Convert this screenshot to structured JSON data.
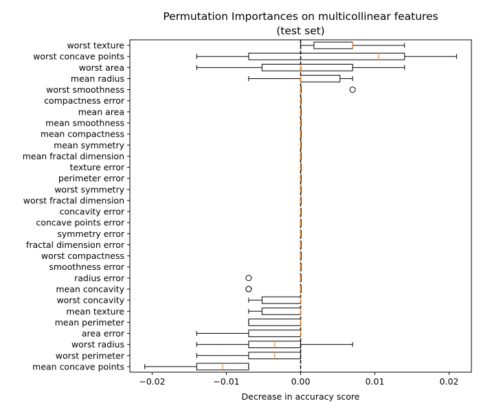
{
  "chart_data": {
    "type": "boxplot",
    "orientation": "horizontal",
    "title": "Permutation Importances on multicollinear features",
    "subtitle": "(test set)",
    "xlabel": "Decrease in accuracy score",
    "ylabel": "",
    "xlim": [
      -0.023,
      0.023
    ],
    "xticks": [
      -0.02,
      -0.01,
      0.0,
      0.01,
      0.02
    ],
    "xtick_labels": [
      "−0.02",
      "−0.01",
      "0.00",
      "0.01",
      "0.02"
    ],
    "reference_line": {
      "x": 0.0,
      "style": "dashed",
      "color": "#000000"
    },
    "colors": {
      "box": "#000000",
      "median": "#ff7f0e",
      "flier": "#000000"
    },
    "features": [
      {
        "name": "worst texture",
        "whislo": 0.0,
        "q1": 0.0018,
        "med": 0.007,
        "q3": 0.007,
        "whishi": 0.014,
        "fliers": []
      },
      {
        "name": "worst concave points",
        "whislo": -0.014,
        "q1": -0.007,
        "med": 0.0105,
        "q3": 0.014,
        "whishi": 0.021,
        "fliers": []
      },
      {
        "name": "worst area",
        "whislo": -0.014,
        "q1": -0.0052,
        "med": 0.0,
        "q3": 0.007,
        "whishi": 0.014,
        "fliers": []
      },
      {
        "name": "mean radius",
        "whislo": -0.007,
        "q1": 0.0,
        "med": 0.0,
        "q3": 0.0053,
        "whishi": 0.007,
        "fliers": []
      },
      {
        "name": "worst smoothness",
        "whislo": 0.0,
        "q1": 0.0,
        "med": 0.0,
        "q3": 0.0,
        "whishi": 0.0,
        "fliers": [
          0.007
        ]
      },
      {
        "name": "compactness error",
        "whislo": 0.0,
        "q1": 0.0,
        "med": 0.0,
        "q3": 0.0,
        "whishi": 0.0,
        "fliers": []
      },
      {
        "name": "mean area",
        "whislo": 0.0,
        "q1": 0.0,
        "med": 0.0,
        "q3": 0.0,
        "whishi": 0.0,
        "fliers": []
      },
      {
        "name": "mean smoothness",
        "whislo": 0.0,
        "q1": 0.0,
        "med": 0.0,
        "q3": 0.0,
        "whishi": 0.0,
        "fliers": []
      },
      {
        "name": "mean compactness",
        "whislo": 0.0,
        "q1": 0.0,
        "med": 0.0,
        "q3": 0.0,
        "whishi": 0.0,
        "fliers": []
      },
      {
        "name": "mean symmetry",
        "whislo": 0.0,
        "q1": 0.0,
        "med": 0.0,
        "q3": 0.0,
        "whishi": 0.0,
        "fliers": []
      },
      {
        "name": "mean fractal dimension",
        "whislo": 0.0,
        "q1": 0.0,
        "med": 0.0,
        "q3": 0.0,
        "whishi": 0.0,
        "fliers": []
      },
      {
        "name": "texture error",
        "whislo": 0.0,
        "q1": 0.0,
        "med": 0.0,
        "q3": 0.0,
        "whishi": 0.0,
        "fliers": []
      },
      {
        "name": "perimeter error",
        "whislo": 0.0,
        "q1": 0.0,
        "med": 0.0,
        "q3": 0.0,
        "whishi": 0.0,
        "fliers": []
      },
      {
        "name": "worst symmetry",
        "whislo": 0.0,
        "q1": 0.0,
        "med": 0.0,
        "q3": 0.0,
        "whishi": 0.0,
        "fliers": []
      },
      {
        "name": "worst fractal dimension",
        "whislo": 0.0,
        "q1": 0.0,
        "med": 0.0,
        "q3": 0.0,
        "whishi": 0.0,
        "fliers": []
      },
      {
        "name": "concavity error",
        "whislo": 0.0,
        "q1": 0.0,
        "med": 0.0,
        "q3": 0.0,
        "whishi": 0.0,
        "fliers": []
      },
      {
        "name": "concave points error",
        "whislo": 0.0,
        "q1": 0.0,
        "med": 0.0,
        "q3": 0.0,
        "whishi": 0.0,
        "fliers": []
      },
      {
        "name": "symmetry error",
        "whislo": 0.0,
        "q1": 0.0,
        "med": 0.0,
        "q3": 0.0,
        "whishi": 0.0,
        "fliers": []
      },
      {
        "name": "fractal dimension error",
        "whislo": 0.0,
        "q1": 0.0,
        "med": 0.0,
        "q3": 0.0,
        "whishi": 0.0,
        "fliers": []
      },
      {
        "name": "worst compactness",
        "whislo": 0.0,
        "q1": 0.0,
        "med": 0.0,
        "q3": 0.0,
        "whishi": 0.0,
        "fliers": []
      },
      {
        "name": "smoothness error",
        "whislo": 0.0,
        "q1": 0.0,
        "med": 0.0,
        "q3": 0.0,
        "whishi": 0.0,
        "fliers": []
      },
      {
        "name": "radius error",
        "whislo": 0.0,
        "q1": 0.0,
        "med": 0.0,
        "q3": 0.0,
        "whishi": 0.0,
        "fliers": [
          -0.007
        ]
      },
      {
        "name": "mean concavity",
        "whislo": 0.0,
        "q1": 0.0,
        "med": 0.0,
        "q3": 0.0,
        "whishi": 0.0,
        "fliers": [
          -0.007,
          -0.007
        ]
      },
      {
        "name": "worst concavity",
        "whislo": -0.007,
        "q1": -0.0052,
        "med": 0.0,
        "q3": 0.0,
        "whishi": 0.0,
        "fliers": []
      },
      {
        "name": "mean texture",
        "whislo": -0.007,
        "q1": -0.0052,
        "med": 0.0,
        "q3": 0.0,
        "whishi": 0.0,
        "fliers": []
      },
      {
        "name": "mean perimeter",
        "whislo": -0.007,
        "q1": -0.007,
        "med": 0.0,
        "q3": 0.0,
        "whishi": 0.0,
        "fliers": []
      },
      {
        "name": "area error",
        "whislo": -0.014,
        "q1": -0.007,
        "med": 0.0,
        "q3": 0.0,
        "whishi": 0.0,
        "fliers": []
      },
      {
        "name": "worst radius",
        "whislo": -0.014,
        "q1": -0.007,
        "med": -0.0035,
        "q3": 0.0,
        "whishi": 0.007,
        "fliers": []
      },
      {
        "name": "worst perimeter",
        "whislo": -0.014,
        "q1": -0.007,
        "med": -0.0035,
        "q3": 0.0,
        "whishi": 0.0,
        "fliers": []
      },
      {
        "name": "mean concave points",
        "whislo": -0.021,
        "q1": -0.014,
        "med": -0.0105,
        "q3": -0.007,
        "whishi": -0.007,
        "fliers": []
      }
    ]
  }
}
